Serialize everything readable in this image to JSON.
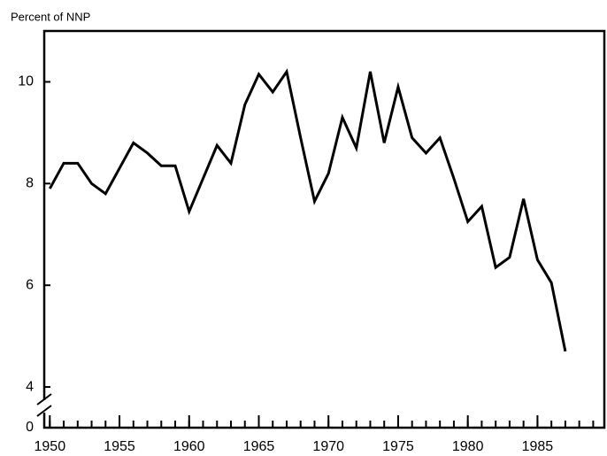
{
  "chart_data": {
    "type": "line",
    "y_axis_label": "Percent of NNP",
    "x": [
      1950,
      1951,
      1952,
      1953,
      1954,
      1955,
      1956,
      1957,
      1958,
      1959,
      1960,
      1961,
      1962,
      1963,
      1964,
      1965,
      1966,
      1967,
      1968,
      1969,
      1970,
      1971,
      1972,
      1973,
      1974,
      1975,
      1976,
      1977,
      1978,
      1979,
      1980,
      1981,
      1982,
      1983,
      1984,
      1985,
      1986,
      1987
    ],
    "series": [
      {
        "color": "#000000",
        "values": [
          7.9,
          8.4,
          8.4,
          8.0,
          7.8,
          8.3,
          8.8,
          8.6,
          8.35,
          8.35,
          7.45,
          8.1,
          8.75,
          8.4,
          9.55,
          10.15,
          9.8,
          10.2,
          8.9,
          7.65,
          8.2,
          9.3,
          8.7,
          10.2,
          8.8,
          9.9,
          8.9,
          8.6,
          8.9,
          8.1,
          7.25,
          7.55,
          6.35,
          6.55,
          7.7,
          6.5,
          6.05,
          4.7
        ]
      }
    ],
    "xlim": [
      1949.6,
      1989.8
    ],
    "xticks": [
      1950,
      1955,
      1960,
      1965,
      1970,
      1975,
      1980,
      1985
    ],
    "xminor_step": 1,
    "ylim": [
      3.2,
      11
    ],
    "yticks": [
      0,
      4,
      6,
      8,
      10
    ],
    "y_axis_break": true,
    "grid": false
  }
}
